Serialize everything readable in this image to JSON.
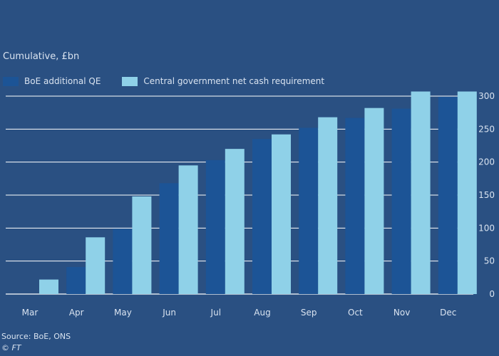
{
  "subtitle": "Cumulative, £bn",
  "source": "Source: BoE, ONS",
  "credit": "© FT",
  "colors": {
    "background": "#2a5082",
    "series1": "#1c5496",
    "series2": "#8fd1e8",
    "grid": "#ffffff",
    "text": "#d9e3f0"
  },
  "chart_data": {
    "type": "bar",
    "title": "",
    "xlabel": "",
    "ylabel": "Cumulative, £bn",
    "ylim": [
      0,
      300
    ],
    "yticks": [
      0,
      50,
      100,
      150,
      200,
      250,
      300
    ],
    "y_axis_position": "right",
    "grid": true,
    "legend_position": "top-left",
    "categories": [
      "Mar",
      "Apr",
      "May",
      "Jun",
      "Jul",
      "Aug",
      "Sep",
      "Oct",
      "Nov",
      "Dec"
    ],
    "series": [
      {
        "name": "BoE additional QE",
        "values": [
          0,
          41,
          99,
          168,
          203,
          235,
          252,
          267,
          281,
          299
        ]
      },
      {
        "name": "Central government net cash requirement",
        "values": [
          22,
          86,
          148,
          195,
          220,
          242,
          268,
          282,
          307,
          307
        ]
      }
    ]
  }
}
